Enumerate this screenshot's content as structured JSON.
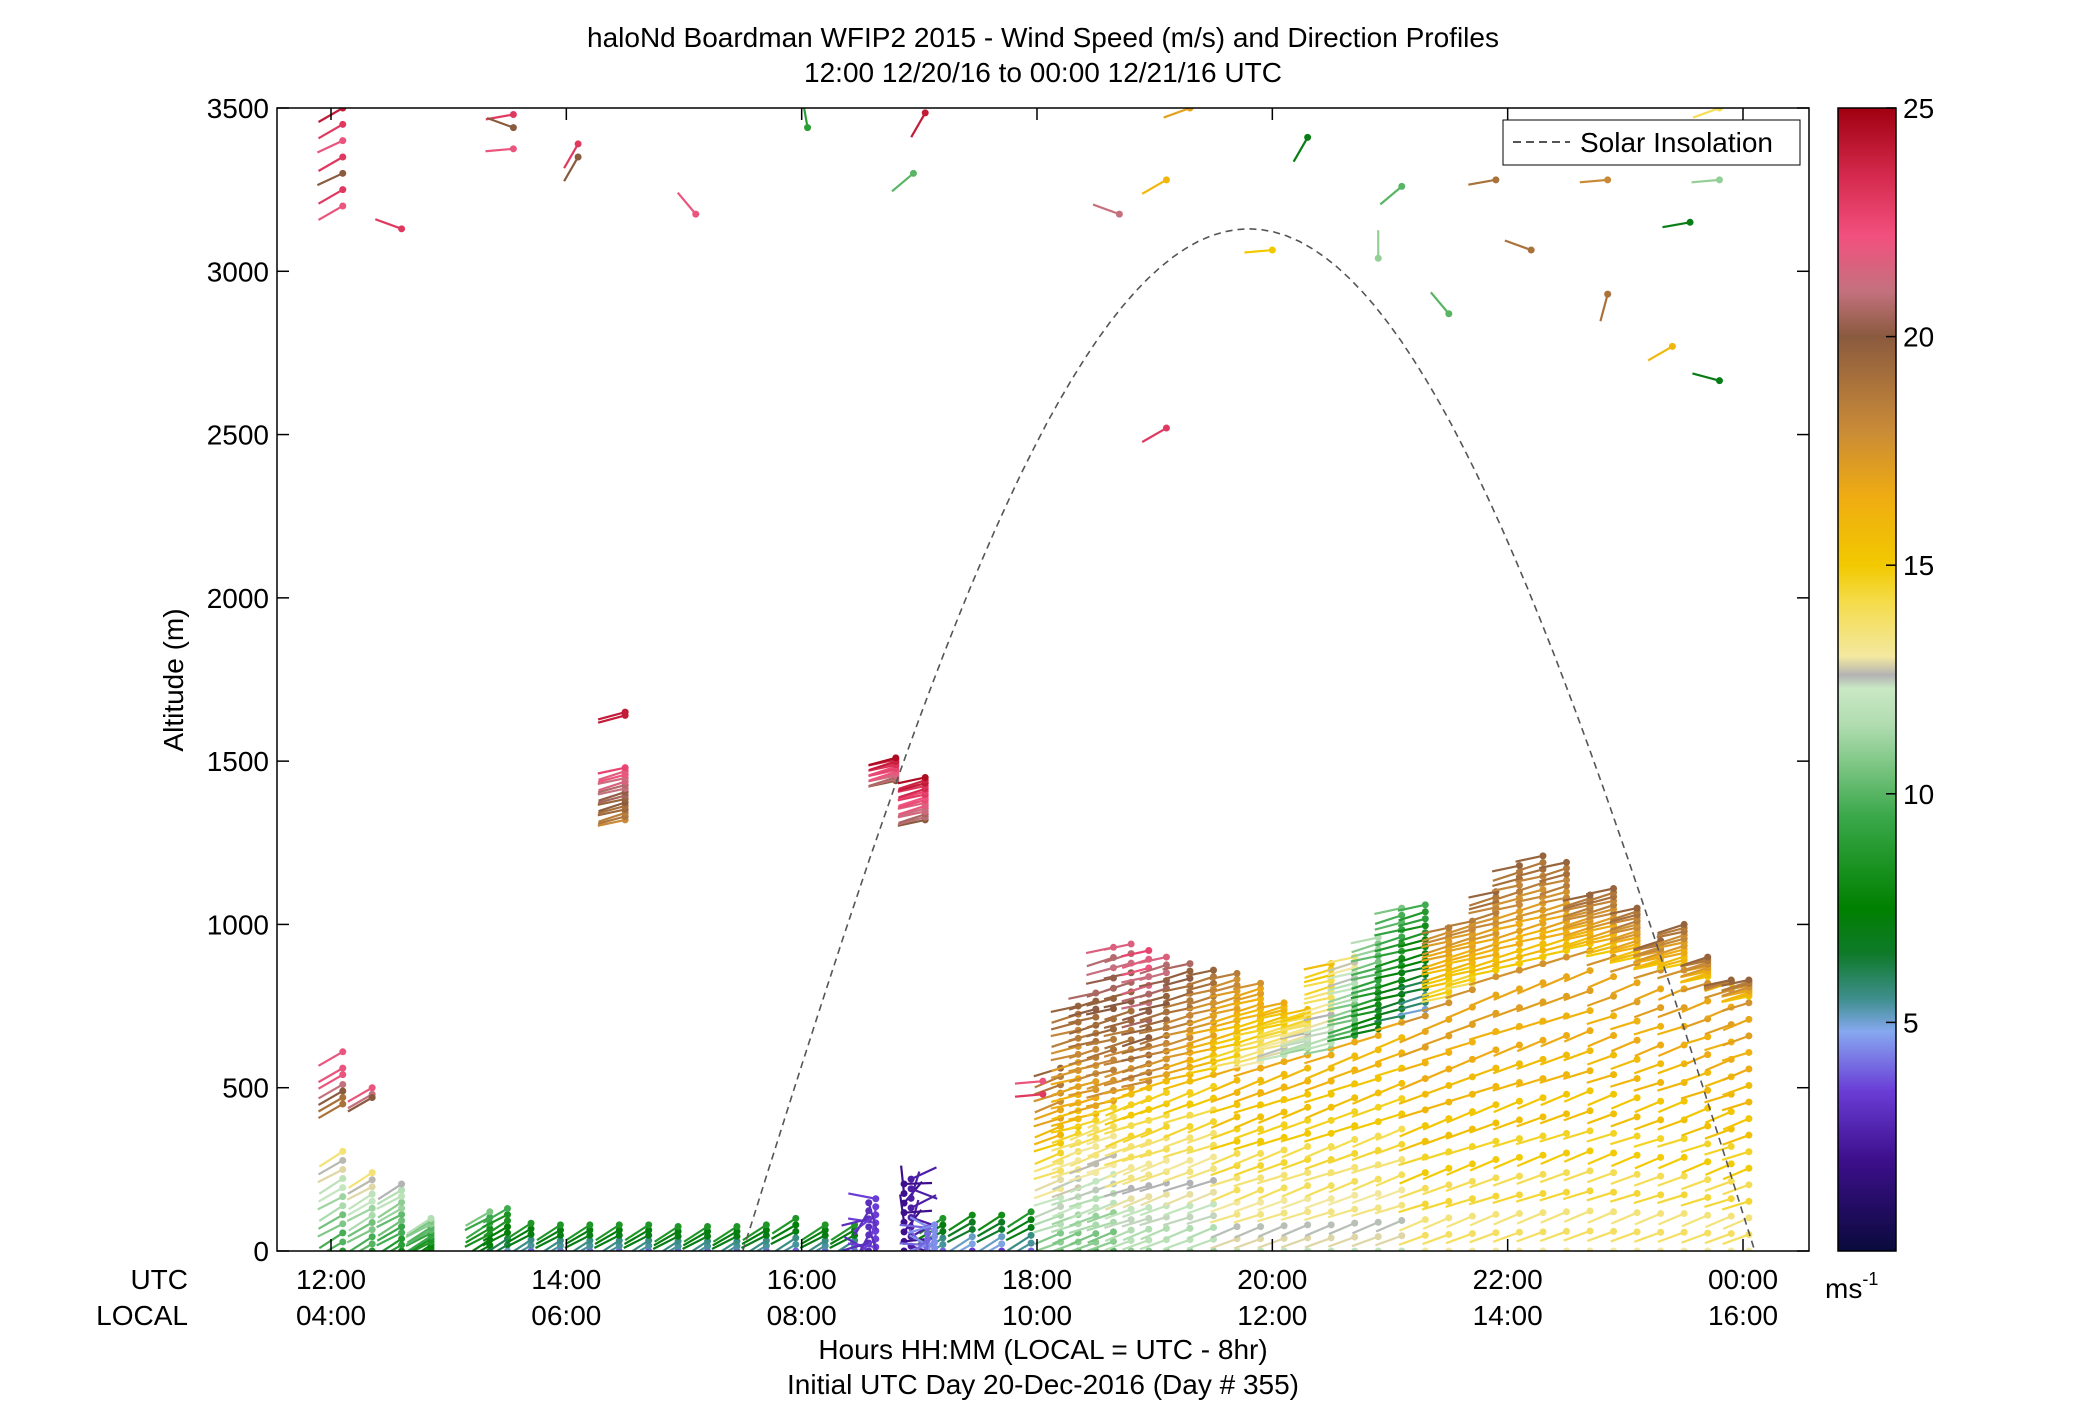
{
  "chart_data": {
    "type": "wind-barb-profile",
    "title": "haloNd Boardman WFIP2 2015 - Wind Speed (m/s) and Direction Profiles",
    "subtitle": "12:00 12/20/16 to 00:00 12/21/16  UTC",
    "ylabel": "Altitude (m)",
    "ylim": [
      0,
      3500
    ],
    "y_ticks": [
      "0",
      "500",
      "1000",
      "1500",
      "2000",
      "2500",
      "3000",
      "3500"
    ],
    "y_tick_values": [
      0,
      500,
      1000,
      1500,
      2000,
      2500,
      3000,
      3500
    ],
    "xlim": [
      11.7,
      24.5
    ],
    "x_row_labels": {
      "utc": "UTC",
      "local": "LOCAL"
    },
    "x_ticks_utc": [
      "12:00",
      "14:00",
      "16:00",
      "18:00",
      "20:00",
      "22:00",
      "00:00"
    ],
    "x_ticks_local": [
      "04:00",
      "06:00",
      "08:00",
      "10:00",
      "12:00",
      "14:00",
      "16:00"
    ],
    "x_tick_hours": [
      12,
      14,
      16,
      18,
      20,
      22,
      24
    ],
    "xlabel_line1": "Hours HH:MM  (LOCAL = UTC - 8hr)",
    "xlabel_line2": "Initial UTC Day 20-Dec-2016 (Day # 355)",
    "legend": {
      "label": "Solar Insolation",
      "position": "top-right",
      "style": "dashed"
    },
    "colorbar": {
      "min": 0,
      "max": 25,
      "tick_values": [
        5,
        10,
        15,
        20,
        25
      ],
      "ticks": [
        "5",
        "10",
        "15",
        "20",
        "25"
      ],
      "unit": "ms",
      "unit_exp": "-1",
      "stops": [
        {
          "v": 0,
          "c": "#0a0a3c"
        },
        {
          "v": 2,
          "c": "#3d0f8c"
        },
        {
          "v": 3.5,
          "c": "#6a3dd6"
        },
        {
          "v": 4.8,
          "c": "#86a8f0"
        },
        {
          "v": 5.5,
          "c": "#3f8f8f"
        },
        {
          "v": 6.5,
          "c": "#0f7a2a"
        },
        {
          "v": 7.5,
          "c": "#008000"
        },
        {
          "v": 9.5,
          "c": "#3aa84a"
        },
        {
          "v": 11.5,
          "c": "#b0dcb0"
        },
        {
          "v": 12.3,
          "c": "#c9e8c4"
        },
        {
          "v": 12.6,
          "c": "#b3b3b3"
        },
        {
          "v": 13,
          "c": "#f3e8a0"
        },
        {
          "v": 14.2,
          "c": "#f4dc4a"
        },
        {
          "v": 15,
          "c": "#f2c900"
        },
        {
          "v": 16.5,
          "c": "#efac12"
        },
        {
          "v": 18,
          "c": "#c88a38"
        },
        {
          "v": 20,
          "c": "#8a5a3e"
        },
        {
          "v": 21,
          "c": "#c4717e"
        },
        {
          "v": 22.2,
          "c": "#f2507e"
        },
        {
          "v": 23.5,
          "c": "#d52a4e"
        },
        {
          "v": 25,
          "c": "#a00010"
        }
      ]
    },
    "insolation": {
      "start_hour": 15.5,
      "end_hour": 24.1,
      "peak_altitude": 3130
    },
    "isolated_barbs": [
      [
        12.1,
        3500,
        24,
        -150
      ],
      [
        12.1,
        3450,
        23,
        -150
      ],
      [
        12.1,
        3400,
        22,
        -155
      ],
      [
        12.1,
        3350,
        23,
        -150
      ],
      [
        12.1,
        3300,
        20,
        -155
      ],
      [
        12.1,
        3250,
        23,
        -150
      ],
      [
        12.1,
        3200,
        22,
        -150
      ],
      [
        12.6,
        3130,
        23,
        160
      ],
      [
        13.55,
        3480,
        23,
        -170
      ],
      [
        13.55,
        3440,
        20,
        160
      ],
      [
        13.55,
        3375,
        22,
        -175
      ],
      [
        14.1,
        3390,
        23,
        -120
      ],
      [
        14.1,
        3350,
        20,
        -120
      ],
      [
        15.1,
        3175,
        22,
        130
      ],
      [
        16.05,
        3440,
        9,
        100
      ],
      [
        16.95,
        3300,
        10,
        -140
      ],
      [
        17.05,
        3485,
        24,
        -120
      ],
      [
        19.1,
        3280,
        16,
        -150
      ],
      [
        18.7,
        3175,
        21,
        160
      ],
      [
        20,
        3065,
        15,
        -175
      ],
      [
        19.1,
        2520,
        23,
        -150
      ],
      [
        20.3,
        3410,
        7,
        -120
      ],
      [
        21.1,
        3260,
        10,
        -140
      ],
      [
        20.9,
        3040,
        11,
        90
      ],
      [
        21.5,
        2870,
        10,
        130
      ],
      [
        21.9,
        3280,
        19,
        -170
      ],
      [
        22.2,
        3065,
        19,
        160
      ],
      [
        22.85,
        3280,
        18,
        -175
      ],
      [
        22.85,
        2930,
        19,
        -105
      ],
      [
        23.4,
        2770,
        16,
        -150
      ],
      [
        23.55,
        3150,
        7,
        -170
      ],
      [
        23.8,
        3280,
        11,
        -175
      ],
      [
        23.8,
        2665,
        7,
        165
      ],
      [
        23.8,
        3500,
        14,
        -160
      ],
      [
        19.3,
        3500,
        17,
        -160
      ],
      [
        14.5,
        1650,
        24,
        -165
      ],
      [
        14.5,
        1640,
        24,
        -165
      ],
      [
        12.1,
        610,
        22,
        -150
      ],
      [
        12.1,
        560,
        22,
        -150
      ],
      [
        12.1,
        540,
        22,
        -150
      ],
      [
        12.1,
        510,
        21,
        -150
      ],
      [
        12.1,
        490,
        20,
        -150
      ],
      [
        12.1,
        470,
        19,
        -150
      ],
      [
        12.1,
        450,
        19,
        -150
      ],
      [
        12.35,
        500,
        22,
        -150
      ],
      [
        12.35,
        480,
        21,
        -150
      ],
      [
        12.35,
        470,
        20,
        -150
      ],
      [
        18.05,
        520,
        22,
        -175
      ],
      [
        18.05,
        480,
        23,
        -175
      ]
    ],
    "barb_segments": [
      [
        14.5,
        1320,
        1480,
        22,
        -165,
        16
      ],
      [
        16.8,
        1440,
        1510,
        24,
        -165,
        14
      ],
      [
        17.05,
        1320,
        1450,
        24,
        -165,
        16
      ],
      [
        12.1,
        0,
        305,
        13,
        -150,
        12
      ],
      [
        12.35,
        0,
        240,
        13,
        -150,
        12
      ],
      [
        12.6,
        0,
        205,
        12,
        -150,
        12
      ],
      [
        12.85,
        0,
        100,
        11,
        -150,
        12
      ],
      [
        13.35,
        0,
        120,
        10,
        -150,
        8
      ],
      [
        13.5,
        0,
        130,
        9,
        -150,
        8
      ],
      [
        13.7,
        0,
        85,
        8,
        -150,
        6
      ],
      [
        13.95,
        0,
        80,
        8,
        -150,
        6
      ],
      [
        14.2,
        0,
        80,
        8,
        -150,
        6
      ],
      [
        14.45,
        0,
        80,
        8,
        -150,
        6
      ],
      [
        14.7,
        0,
        80,
        8,
        -150,
        6
      ],
      [
        14.95,
        0,
        75,
        8,
        -150,
        6
      ],
      [
        15.2,
        0,
        75,
        8,
        -150,
        6
      ],
      [
        15.45,
        0,
        75,
        8,
        -150,
        6
      ],
      [
        15.7,
        0,
        80,
        8,
        -150,
        6
      ],
      [
        15.95,
        0,
        100,
        8,
        -150,
        6
      ],
      [
        16.2,
        0,
        80,
        8,
        -150,
        6
      ],
      [
        16.45,
        0,
        80,
        8,
        -150,
        6
      ],
      [
        17.2,
        0,
        100,
        8,
        -150,
        6
      ],
      [
        17.45,
        0,
        110,
        7.5,
        -150,
        6
      ],
      [
        17.7,
        0,
        110,
        7.5,
        -150,
        6
      ],
      [
        17.95,
        0,
        120,
        8,
        -150,
        6
      ],
      [
        18.2,
        0,
        300,
        14,
        -160,
        12
      ],
      [
        18.2,
        330,
        560,
        19,
        -160,
        10
      ],
      [
        18.35,
        0,
        360,
        14,
        -160,
        14
      ],
      [
        18.35,
        380,
        750,
        19,
        -165,
        16
      ],
      [
        18.5,
        0,
        400,
        14,
        -160,
        16
      ],
      [
        18.5,
        420,
        790,
        20,
        -165,
        16
      ],
      [
        18.65,
        0,
        440,
        14,
        -160,
        16
      ],
      [
        18.65,
        460,
        930,
        21,
        -165,
        16
      ],
      [
        18.8,
        0,
        480,
        15,
        -160,
        16
      ],
      [
        18.8,
        500,
        940,
        21,
        -165,
        16
      ],
      [
        18.95,
        0,
        500,
        15,
        -160,
        16
      ],
      [
        18.95,
        520,
        920,
        22,
        -165,
        16
      ],
      [
        19.1,
        0,
        520,
        15,
        -160,
        16
      ],
      [
        19.1,
        540,
        900,
        21,
        -165,
        16
      ],
      [
        19.3,
        0,
        520,
        15,
        -160,
        16
      ],
      [
        19.3,
        540,
        880,
        20,
        -165,
        16
      ],
      [
        19.5,
        0,
        540,
        15,
        -160,
        16
      ],
      [
        19.5,
        560,
        860,
        19,
        -165,
        16
      ],
      [
        19.7,
        0,
        560,
        16,
        -160,
        16
      ],
      [
        19.7,
        580,
        850,
        18,
        -165,
        16
      ],
      [
        19.9,
        0,
        560,
        16,
        -160,
        16
      ],
      [
        19.9,
        580,
        820,
        17,
        -165,
        16
      ],
      [
        20.1,
        0,
        580,
        16,
        -160,
        16
      ],
      [
        20.1,
        600,
        760,
        16,
        -165,
        16
      ],
      [
        20.3,
        0,
        600,
        16,
        -160,
        16
      ],
      [
        20.3,
        620,
        740,
        15,
        -165,
        16
      ],
      [
        20.5,
        0,
        600,
        16,
        -160,
        16
      ],
      [
        20.5,
        620,
        880,
        15,
        -165,
        16
      ],
      [
        20.7,
        0,
        640,
        16,
        -160,
        16
      ],
      [
        20.7,
        660,
        900,
        13,
        -165,
        16
      ],
      [
        20.9,
        0,
        660,
        16,
        -160,
        16
      ],
      [
        20.9,
        680,
        960,
        11,
        -165,
        16
      ],
      [
        21.1,
        0,
        700,
        16,
        -160,
        16
      ],
      [
        21.1,
        720,
        1050,
        10,
        -165,
        16
      ],
      [
        21.3,
        0,
        720,
        17,
        -160,
        16
      ],
      [
        21.3,
        740,
        1060,
        9,
        -165,
        16
      ],
      [
        21.5,
        0,
        760,
        17,
        -160,
        16
      ],
      [
        21.5,
        780,
        990,
        18,
        -165,
        16
      ],
      [
        21.7,
        0,
        800,
        17,
        -160,
        16
      ],
      [
        21.7,
        820,
        1010,
        18,
        -165,
        16
      ],
      [
        21.9,
        0,
        840,
        17,
        -160,
        16
      ],
      [
        21.9,
        860,
        1100,
        19,
        -165,
        16
      ],
      [
        22.1,
        0,
        860,
        17,
        -160,
        16
      ],
      [
        22.1,
        880,
        1180,
        19,
        -165,
        16
      ],
      [
        22.3,
        0,
        880,
        17,
        -160,
        16
      ],
      [
        22.3,
        900,
        1210,
        19,
        -165,
        16
      ],
      [
        22.5,
        0,
        900,
        17,
        -160,
        16
      ],
      [
        22.5,
        920,
        1190,
        19,
        -165,
        16
      ],
      [
        22.7,
        0,
        920,
        17,
        -160,
        16
      ],
      [
        22.7,
        940,
        1090,
        19,
        -165,
        16
      ],
      [
        22.9,
        0,
        900,
        17,
        -160,
        16
      ],
      [
        22.9,
        920,
        1110,
        19,
        -165,
        16
      ],
      [
        23.1,
        0,
        880,
        17,
        -160,
        16
      ],
      [
        23.1,
        900,
        1050,
        19,
        -165,
        16
      ],
      [
        23.3,
        0,
        860,
        17,
        -160,
        16
      ],
      [
        23.3,
        880,
        950,
        19,
        -165,
        12
      ],
      [
        23.5,
        0,
        860,
        17,
        -160,
        16
      ],
      [
        23.5,
        880,
        1000,
        19,
        -165,
        12
      ],
      [
        23.7,
        0,
        820,
        17,
        -160,
        16
      ],
      [
        23.7,
        840,
        900,
        19,
        -165,
        12
      ],
      [
        23.9,
        0,
        800,
        17,
        -160,
        16
      ],
      [
        23.9,
        820,
        830,
        19,
        -165,
        10
      ],
      [
        24.05,
        0,
        760,
        17,
        -160,
        16
      ],
      [
        24.05,
        780,
        830,
        19,
        -165,
        10
      ]
    ],
    "calm_clusters": [
      [
        16.6,
        160,
        3,
        -140,
        14
      ],
      [
        16.9,
        220,
        2,
        30,
        16
      ],
      [
        17.1,
        80,
        4,
        -160,
        10
      ]
    ]
  }
}
